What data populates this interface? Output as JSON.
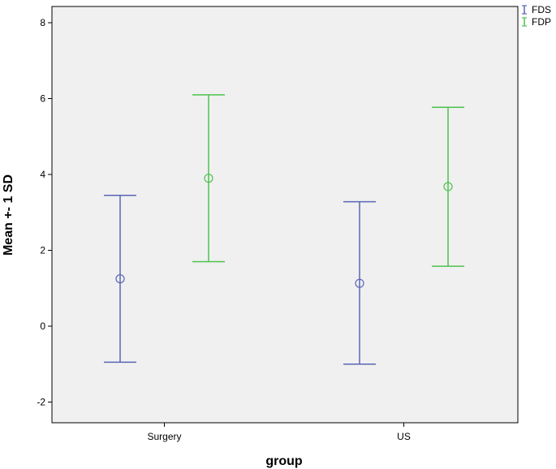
{
  "chart_data": {
    "type": "errorbar",
    "categories": [
      "Surgery",
      "US"
    ],
    "xlabel": "group",
    "ylabel": "Mean +- 1 SD",
    "ylim": [
      -2.5,
      8.8
    ],
    "yticks": [
      -2,
      0,
      2,
      4,
      6,
      8
    ],
    "grid": false,
    "legend_position": "top-right",
    "background": "#f0f0f0",
    "series": [
      {
        "name": "FDS",
        "color": "#5a65b5",
        "points": [
          {
            "category": "Surgery",
            "mean": 1.25,
            "low": -0.95,
            "high": 3.45
          },
          {
            "category": "US",
            "mean": 1.13,
            "low": -1.0,
            "high": 3.28
          }
        ]
      },
      {
        "name": "FDP",
        "color": "#4cc24c",
        "points": [
          {
            "category": "Surgery",
            "mean": 3.9,
            "low": 1.7,
            "high": 6.1
          },
          {
            "category": "US",
            "mean": 3.68,
            "low": 1.58,
            "high": 5.77
          }
        ]
      }
    ]
  }
}
